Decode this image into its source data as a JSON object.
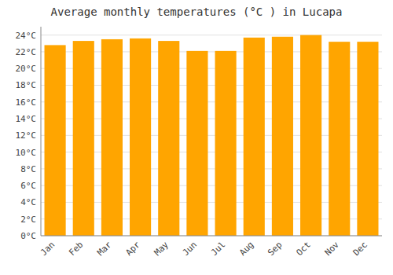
{
  "chart_data": {
    "type": "bar",
    "title": "Average monthly temperatures (°C ) in Lucapa",
    "categories": [
      "Jan",
      "Feb",
      "Mar",
      "Apr",
      "May",
      "Jun",
      "Jul",
      "Aug",
      "Sep",
      "Oct",
      "Nov",
      "Dec"
    ],
    "values": [
      22.8,
      23.3,
      23.5,
      23.6,
      23.3,
      22.1,
      22.1,
      23.7,
      23.8,
      24.0,
      23.2,
      23.2
    ],
    "color": "#FFA500",
    "ylim": [
      0,
      25
    ],
    "yticks": [
      {
        "value": 0,
        "label": "0°C"
      },
      {
        "value": 2,
        "label": "2°C"
      },
      {
        "value": 4,
        "label": "4°C"
      },
      {
        "value": 6,
        "label": "6°C"
      },
      {
        "value": 8,
        "label": "8°C"
      },
      {
        "value": 10,
        "label": "10°C"
      },
      {
        "value": 12,
        "label": "12°C"
      },
      {
        "value": 14,
        "label": "14°C"
      },
      {
        "value": 16,
        "label": "16°C"
      },
      {
        "value": 18,
        "label": "18°C"
      },
      {
        "value": 20,
        "label": "20°C"
      },
      {
        "value": 22,
        "label": "22°C"
      },
      {
        "value": 24,
        "label": "24°C"
      }
    ],
    "grid": true
  }
}
